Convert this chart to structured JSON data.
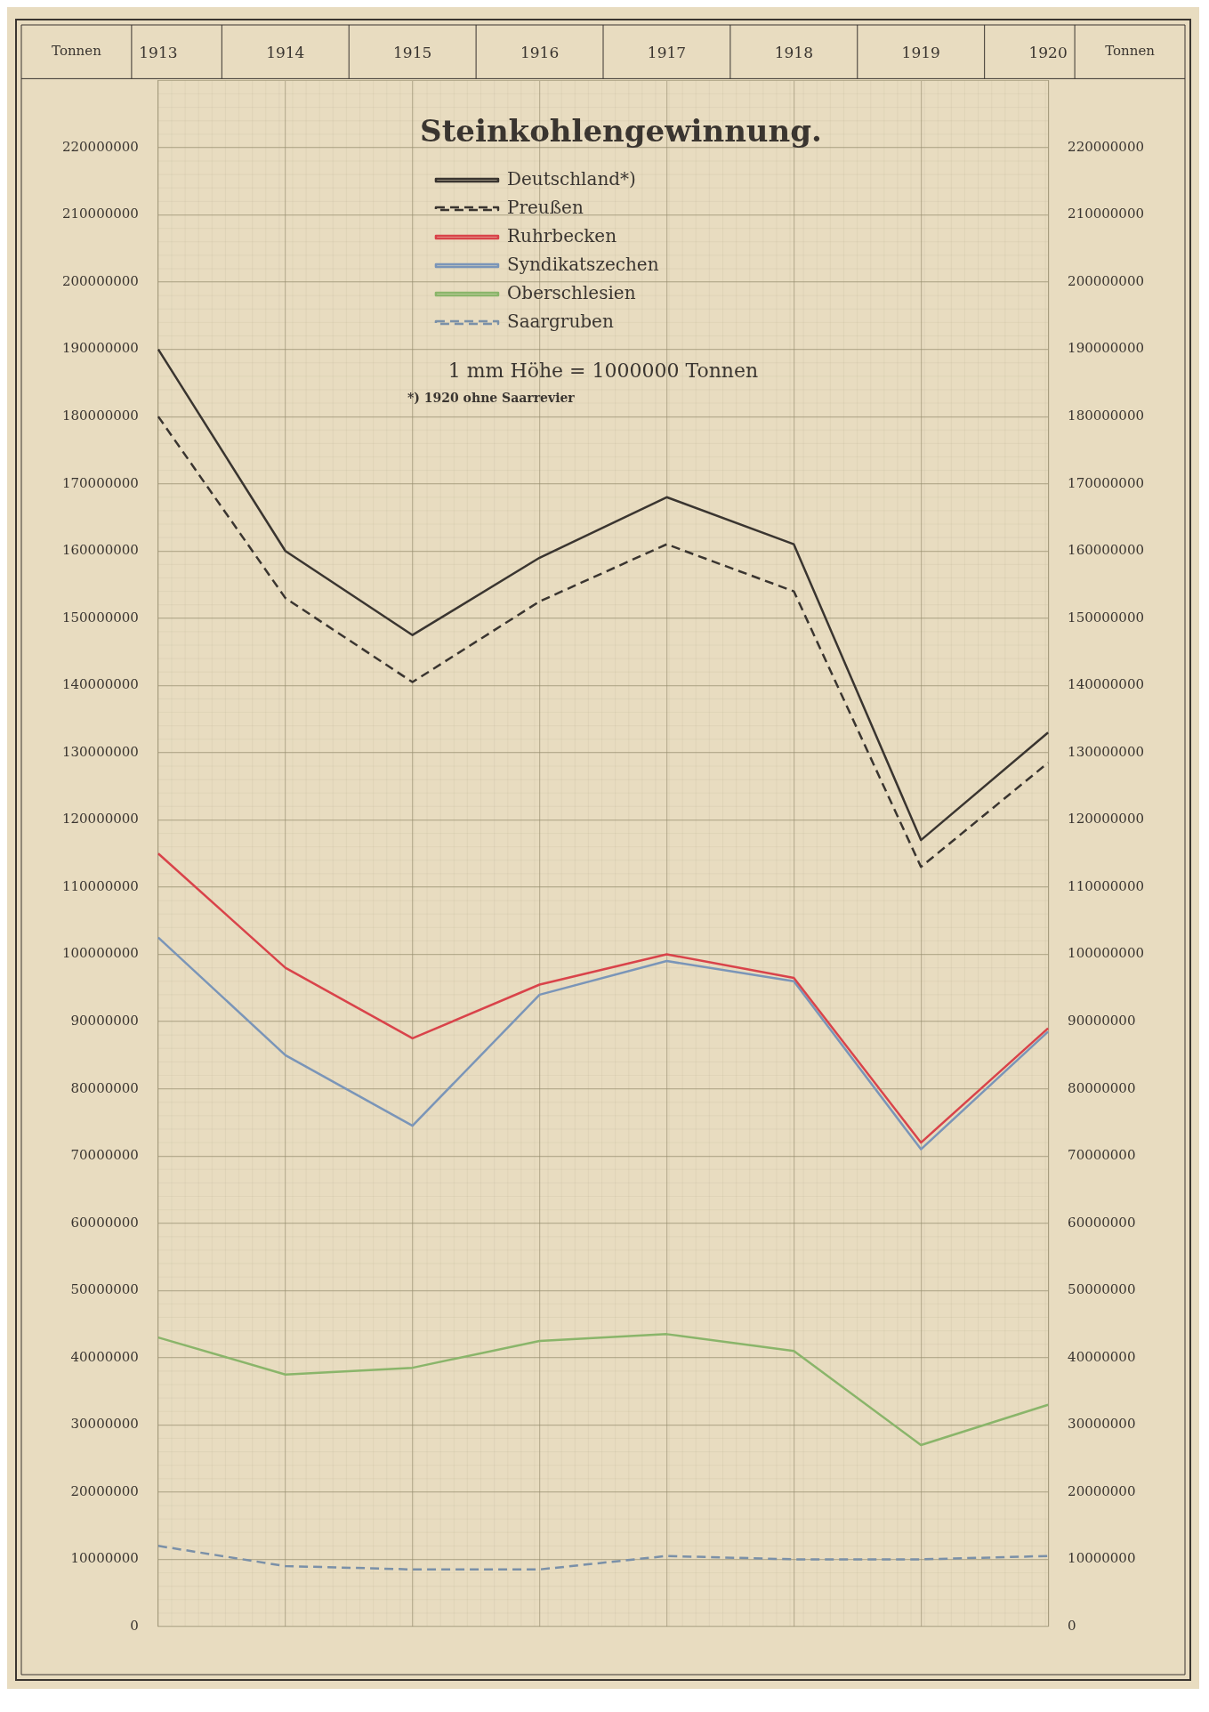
{
  "chart_data": {
    "type": "line",
    "title": "Steinkohlengewinnung.",
    "ylabel": "Tonnen",
    "y2label": "Tonnen",
    "categories": [
      "1913",
      "1914",
      "1915",
      "1916",
      "1917",
      "1918",
      "1919",
      "1920"
    ],
    "series": [
      {
        "name": "Deutschland*)",
        "color": "#3a3530",
        "line_style": "solid",
        "values": [
          190000000,
          160000000,
          147500000,
          159000000,
          168000000,
          161000000,
          117000000,
          133000000
        ]
      },
      {
        "name": "Preußen",
        "color": "#3a3530",
        "line_style": "dashed",
        "values": [
          180000000,
          153000000,
          140500000,
          152500000,
          161000000,
          154000000,
          113000000,
          128500000
        ]
      },
      {
        "name": "Ruhrbecken",
        "color": "#d9434a",
        "line_style": "solid",
        "values": [
          115000000,
          98000000,
          87500000,
          95500000,
          100000000,
          96500000,
          72000000,
          89000000
        ]
      },
      {
        "name": "Syndikatszechen",
        "color": "#7a95b8",
        "line_style": "solid",
        "values": [
          102500000,
          85000000,
          74500000,
          94000000,
          99000000,
          96000000,
          71000000,
          88500000
        ]
      },
      {
        "name": "Oberschlesien",
        "color": "#8ab56a",
        "line_style": "solid",
        "values": [
          43000000,
          37500000,
          38500000,
          42500000,
          43500000,
          41000000,
          27000000,
          33000000
        ]
      },
      {
        "name": "Saargruben",
        "color": "#7a90a8",
        "line_style": "dashed",
        "values": [
          12000000,
          9000000,
          8500000,
          8500000,
          10500000,
          10000000,
          10000000,
          10500000
        ]
      }
    ],
    "ylim": [
      0,
      230000000
    ],
    "yticks": [
      0,
      10000000,
      20000000,
      30000000,
      40000000,
      50000000,
      60000000,
      70000000,
      80000000,
      90000000,
      100000000,
      110000000,
      120000000,
      130000000,
      140000000,
      150000000,
      160000000,
      170000000,
      180000000,
      190000000,
      200000000,
      210000000,
      220000000
    ],
    "y2lim": [
      0,
      230000000
    ],
    "y2ticks": [
      0,
      10000000,
      20000000,
      30000000,
      40000000,
      50000000,
      60000000,
      70000000,
      80000000,
      90000000,
      100000000,
      110000000,
      120000000,
      130000000,
      140000000,
      150000000,
      160000000,
      170000000,
      180000000,
      190000000,
      200000000,
      210000000,
      220000000
    ],
    "annotations": [
      "1 mm Höhe = 1000000 Tonnen",
      "*) 1920 ohne Saarrevier"
    ],
    "grid": true,
    "legend": "top",
    "marker": "none"
  }
}
